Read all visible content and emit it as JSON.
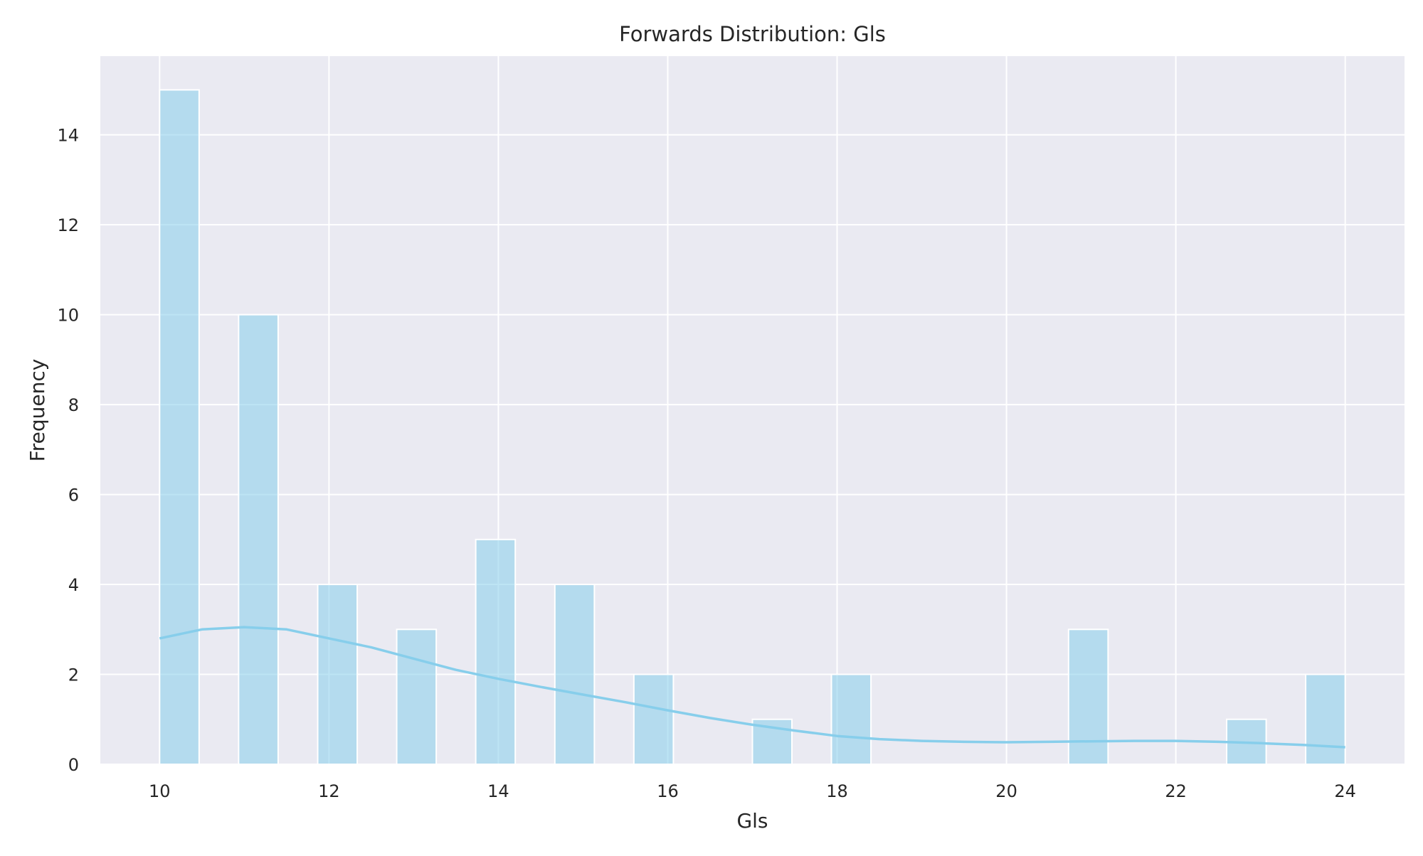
{
  "chart_data": {
    "type": "bar",
    "title": "Forwards Distribution: Gls",
    "xlabel": "Gls",
    "ylabel": "Frequency",
    "xlim": [
      9.3,
      24.7
    ],
    "ylim": [
      0,
      15.75
    ],
    "xticks": [
      10,
      12,
      14,
      16,
      18,
      20,
      22,
      24
    ],
    "yticks": [
      0,
      2,
      4,
      6,
      8,
      10,
      12,
      14
    ],
    "grid": true,
    "bin_width": 0.4667,
    "bars": [
      {
        "x_start": 10.0,
        "count": 15
      },
      {
        "x_start": 10.933,
        "count": 10
      },
      {
        "x_start": 11.867,
        "count": 4
      },
      {
        "x_start": 12.8,
        "count": 3
      },
      {
        "x_start": 13.733,
        "count": 5
      },
      {
        "x_start": 14.667,
        "count": 4
      },
      {
        "x_start": 15.6,
        "count": 2
      },
      {
        "x_start": 17.0,
        "count": 1
      },
      {
        "x_start": 17.933,
        "count": 2
      },
      {
        "x_start": 20.733,
        "count": 3
      },
      {
        "x_start": 22.6,
        "count": 1
      },
      {
        "x_start": 23.533,
        "count": 2
      }
    ],
    "kde": {
      "x": [
        10,
        10.5,
        11,
        11.5,
        12,
        12.5,
        13,
        13.5,
        14,
        14.5,
        15,
        15.5,
        16,
        16.5,
        17,
        17.5,
        18,
        18.5,
        19,
        19.5,
        20,
        20.5,
        21,
        21.5,
        22,
        22.5,
        23,
        23.5,
        24
      ],
      "y": [
        2.8,
        3.0,
        3.05,
        3.0,
        2.8,
        2.6,
        2.35,
        2.1,
        1.9,
        1.72,
        1.55,
        1.38,
        1.2,
        1.03,
        0.88,
        0.75,
        0.63,
        0.56,
        0.52,
        0.5,
        0.49,
        0.5,
        0.51,
        0.52,
        0.52,
        0.5,
        0.47,
        0.43,
        0.38
      ]
    },
    "colors": {
      "bar_fill": "#87ceeb",
      "bar_stroke": "#ffffff",
      "kde_line": "#87ceeb",
      "plot_background": "#eaeaf2",
      "grid": "#ffffff"
    }
  }
}
